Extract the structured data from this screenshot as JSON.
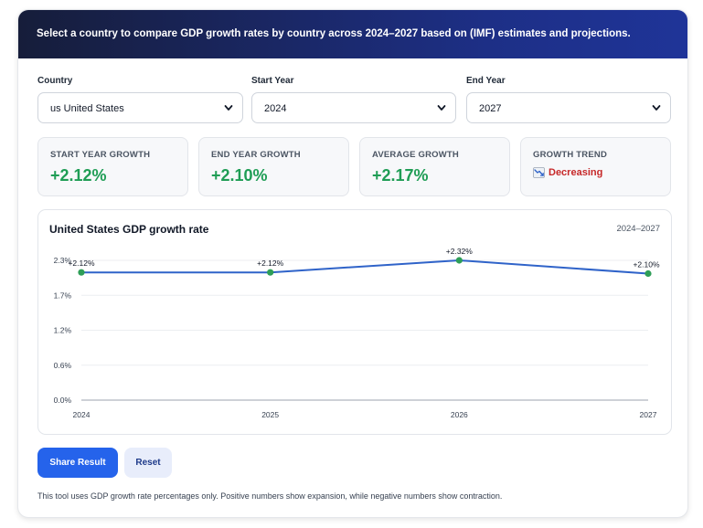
{
  "banner": {
    "text": "Select a country to compare GDP growth rates by country across 2024–2027 based on (IMF) estimates and projections."
  },
  "controls": {
    "country": {
      "label": "Country",
      "value": "us United States"
    },
    "start_year": {
      "label": "Start Year",
      "value": "2024"
    },
    "end_year": {
      "label": "End Year",
      "value": "2027"
    }
  },
  "stats": {
    "start": {
      "label": "START YEAR GROWTH",
      "value": "+2.12%"
    },
    "end": {
      "label": "END YEAR GROWTH",
      "value": "+2.10%"
    },
    "average": {
      "label": "AVERAGE GROWTH",
      "value": "+2.17%"
    },
    "trend": {
      "label": "GROWTH TREND",
      "value": "Decreasing",
      "icon": "chart-decreasing-icon"
    }
  },
  "chart": {
    "title": "United States GDP growth rate",
    "range": "2024–2027"
  },
  "chart_data": {
    "type": "line",
    "title": "United States GDP growth rate",
    "x": [
      "2024",
      "2025",
      "2026",
      "2027"
    ],
    "series": [
      {
        "values": [
          2.12,
          2.12,
          2.32,
          2.1
        ]
      }
    ],
    "data_labels": [
      "+2.12%",
      "+2.12%",
      "+2.32%",
      "+2.10%"
    ],
    "y_ticks": [
      "0.0%",
      "0.6%",
      "1.2%",
      "1.7%",
      "2.3%"
    ],
    "y_tick_values": [
      0,
      0.58,
      1.16,
      1.74,
      2.32
    ],
    "ylim": [
      0,
      2.32
    ],
    "grid": true,
    "line_color": "#2f63c9",
    "point_color": "#2e9e57"
  },
  "actions": {
    "share_label": "Share Result",
    "reset_label": "Reset"
  },
  "footnote": "This tool uses GDP growth rate percentages only. Positive numbers show expansion, while negative numbers show contraction.",
  "colors": {
    "positive": "#1f9d55",
    "negative": "#c62828",
    "accent": "#2563eb"
  }
}
